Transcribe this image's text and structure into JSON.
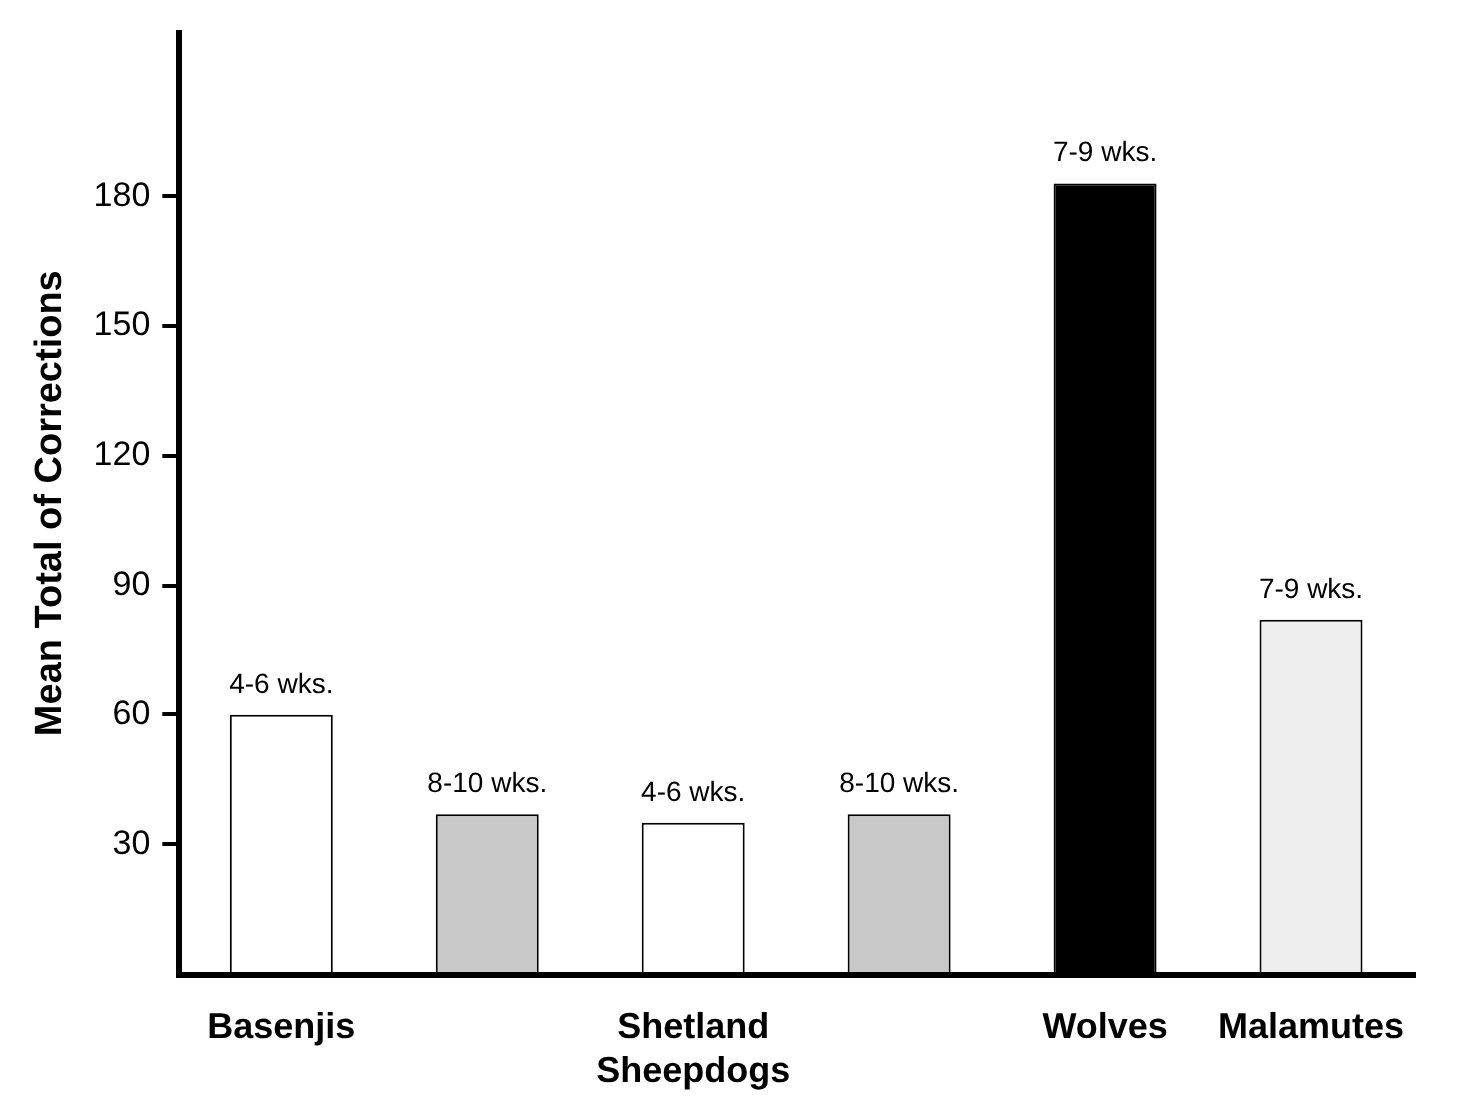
{
  "chart_data": {
    "type": "bar",
    "ylabel": "Mean Total of Corrections",
    "categories": [
      "Basenjis",
      null,
      "Shetland Sheepdogs",
      null,
      "Wolves",
      "Malamutes"
    ],
    "values": [
      60,
      37,
      35,
      37,
      183,
      82
    ],
    "colors": [
      "#ffffff",
      "#c8c8c8",
      "#ffffff",
      "#c8c8c8",
      "#000000",
      "#eeeeee"
    ],
    "value_labels": [
      "4-6 wks.",
      "8-10 wks.",
      "4-6 wks.",
      "8-10 wks.",
      "7-9 wks.",
      "7-9 wks."
    ],
    "ylim": [
      0,
      218
    ],
    "yticks": [
      30,
      60,
      90,
      120,
      150,
      180
    ],
    "grid": false,
    "legend": false
  }
}
